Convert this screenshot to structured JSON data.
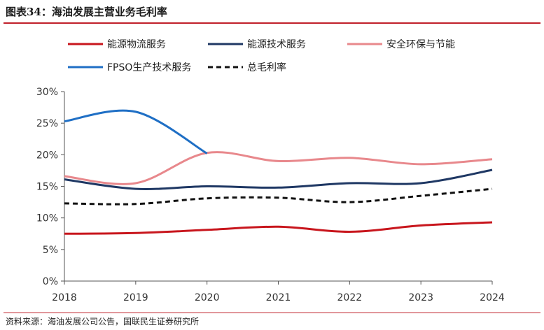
{
  "figure": {
    "title": "图表34：海油发展主营业务毛利率",
    "source": "资料来源：海油发展公司公告，国联民生证券研究所"
  },
  "chart_data": {
    "type": "line",
    "title": "",
    "xlabel": "",
    "ylabel": "",
    "x": [
      "2018",
      "2019",
      "2020",
      "2021",
      "2022",
      "2023",
      "2024"
    ],
    "ylim": [
      0,
      30
    ],
    "yticks": [
      "0%",
      "5%",
      "10%",
      "15%",
      "20%",
      "25%",
      "30%"
    ],
    "grid": false,
    "legend_position": "top",
    "series": [
      {
        "name": "能源物流服务",
        "color": "#c8161d",
        "dash": "solid",
        "values": [
          7.5,
          7.6,
          8.1,
          8.6,
          7.8,
          8.8,
          9.3
        ]
      },
      {
        "name": "能源技术服务",
        "color": "#1f3864",
        "dash": "solid",
        "values": [
          16.1,
          14.6,
          15.0,
          14.8,
          15.5,
          15.5,
          17.6
        ]
      },
      {
        "name": "安全环保与节能",
        "color": "#e8888c",
        "dash": "solid",
        "values": [
          16.6,
          15.5,
          20.3,
          19.0,
          19.5,
          18.5,
          19.3
        ]
      },
      {
        "name": "FPSO生产技术服务",
        "color": "#1f6fc5",
        "dash": "solid",
        "values": [
          25.3,
          26.8,
          20.2,
          null,
          null,
          null,
          null
        ]
      },
      {
        "name": "总毛利率",
        "color": "#111111",
        "dash": "dashed",
        "values": [
          12.3,
          12.2,
          13.1,
          13.2,
          12.5,
          13.5,
          14.6
        ]
      }
    ]
  }
}
